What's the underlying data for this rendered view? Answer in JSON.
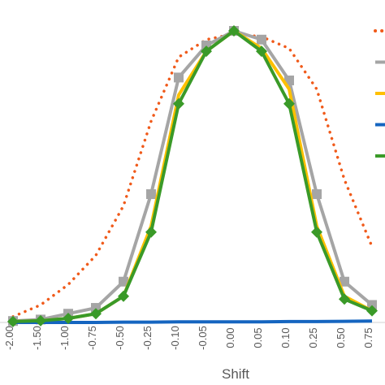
{
  "chart_data": {
    "type": "line",
    "x_label": "Shift",
    "categories": [
      "-2.00",
      "-1.50",
      "-1.00",
      "-0.75",
      "-0.50",
      "-0.25",
      "-0.10",
      "-0.05",
      "0.00",
      "0.05",
      "0.10",
      "0.25",
      "0.50",
      "0.75"
    ],
    "ylim": [
      0,
      1
    ],
    "series": [
      {
        "color": "#f05a1a",
        "dash": "dotted",
        "values": [
          0.02,
          0.06,
          0.13,
          0.23,
          0.4,
          0.69,
          0.91,
          0.97,
          0.99,
          0.98,
          0.94,
          0.8,
          0.49,
          0.26
        ]
      },
      {
        "color": "#a5a5a5",
        "marker": "square",
        "values": [
          0.005,
          0.01,
          0.03,
          0.05,
          0.14,
          0.44,
          0.84,
          0.95,
          1.0,
          0.97,
          0.83,
          0.44,
          0.14,
          0.06
        ]
      },
      {
        "color": "#ffc000",
        "values": [
          0.003,
          0.006,
          0.014,
          0.03,
          0.09,
          0.33,
          0.78,
          0.93,
          1.0,
          0.94,
          0.8,
          0.33,
          0.09,
          0.04
        ]
      },
      {
        "color": "#1565c0",
        "values": [
          0,
          0,
          0,
          0,
          0.001,
          0.001,
          0.002,
          0.002,
          0.002,
          0.002,
          0.003,
          0.003,
          0.004,
          0.005
        ]
      },
      {
        "color": "#3a9a28",
        "marker": "diamond",
        "values": [
          0.003,
          0.006,
          0.014,
          0.03,
          0.09,
          0.31,
          0.75,
          0.93,
          1.0,
          0.93,
          0.75,
          0.31,
          0.08,
          0.04
        ]
      }
    ]
  }
}
